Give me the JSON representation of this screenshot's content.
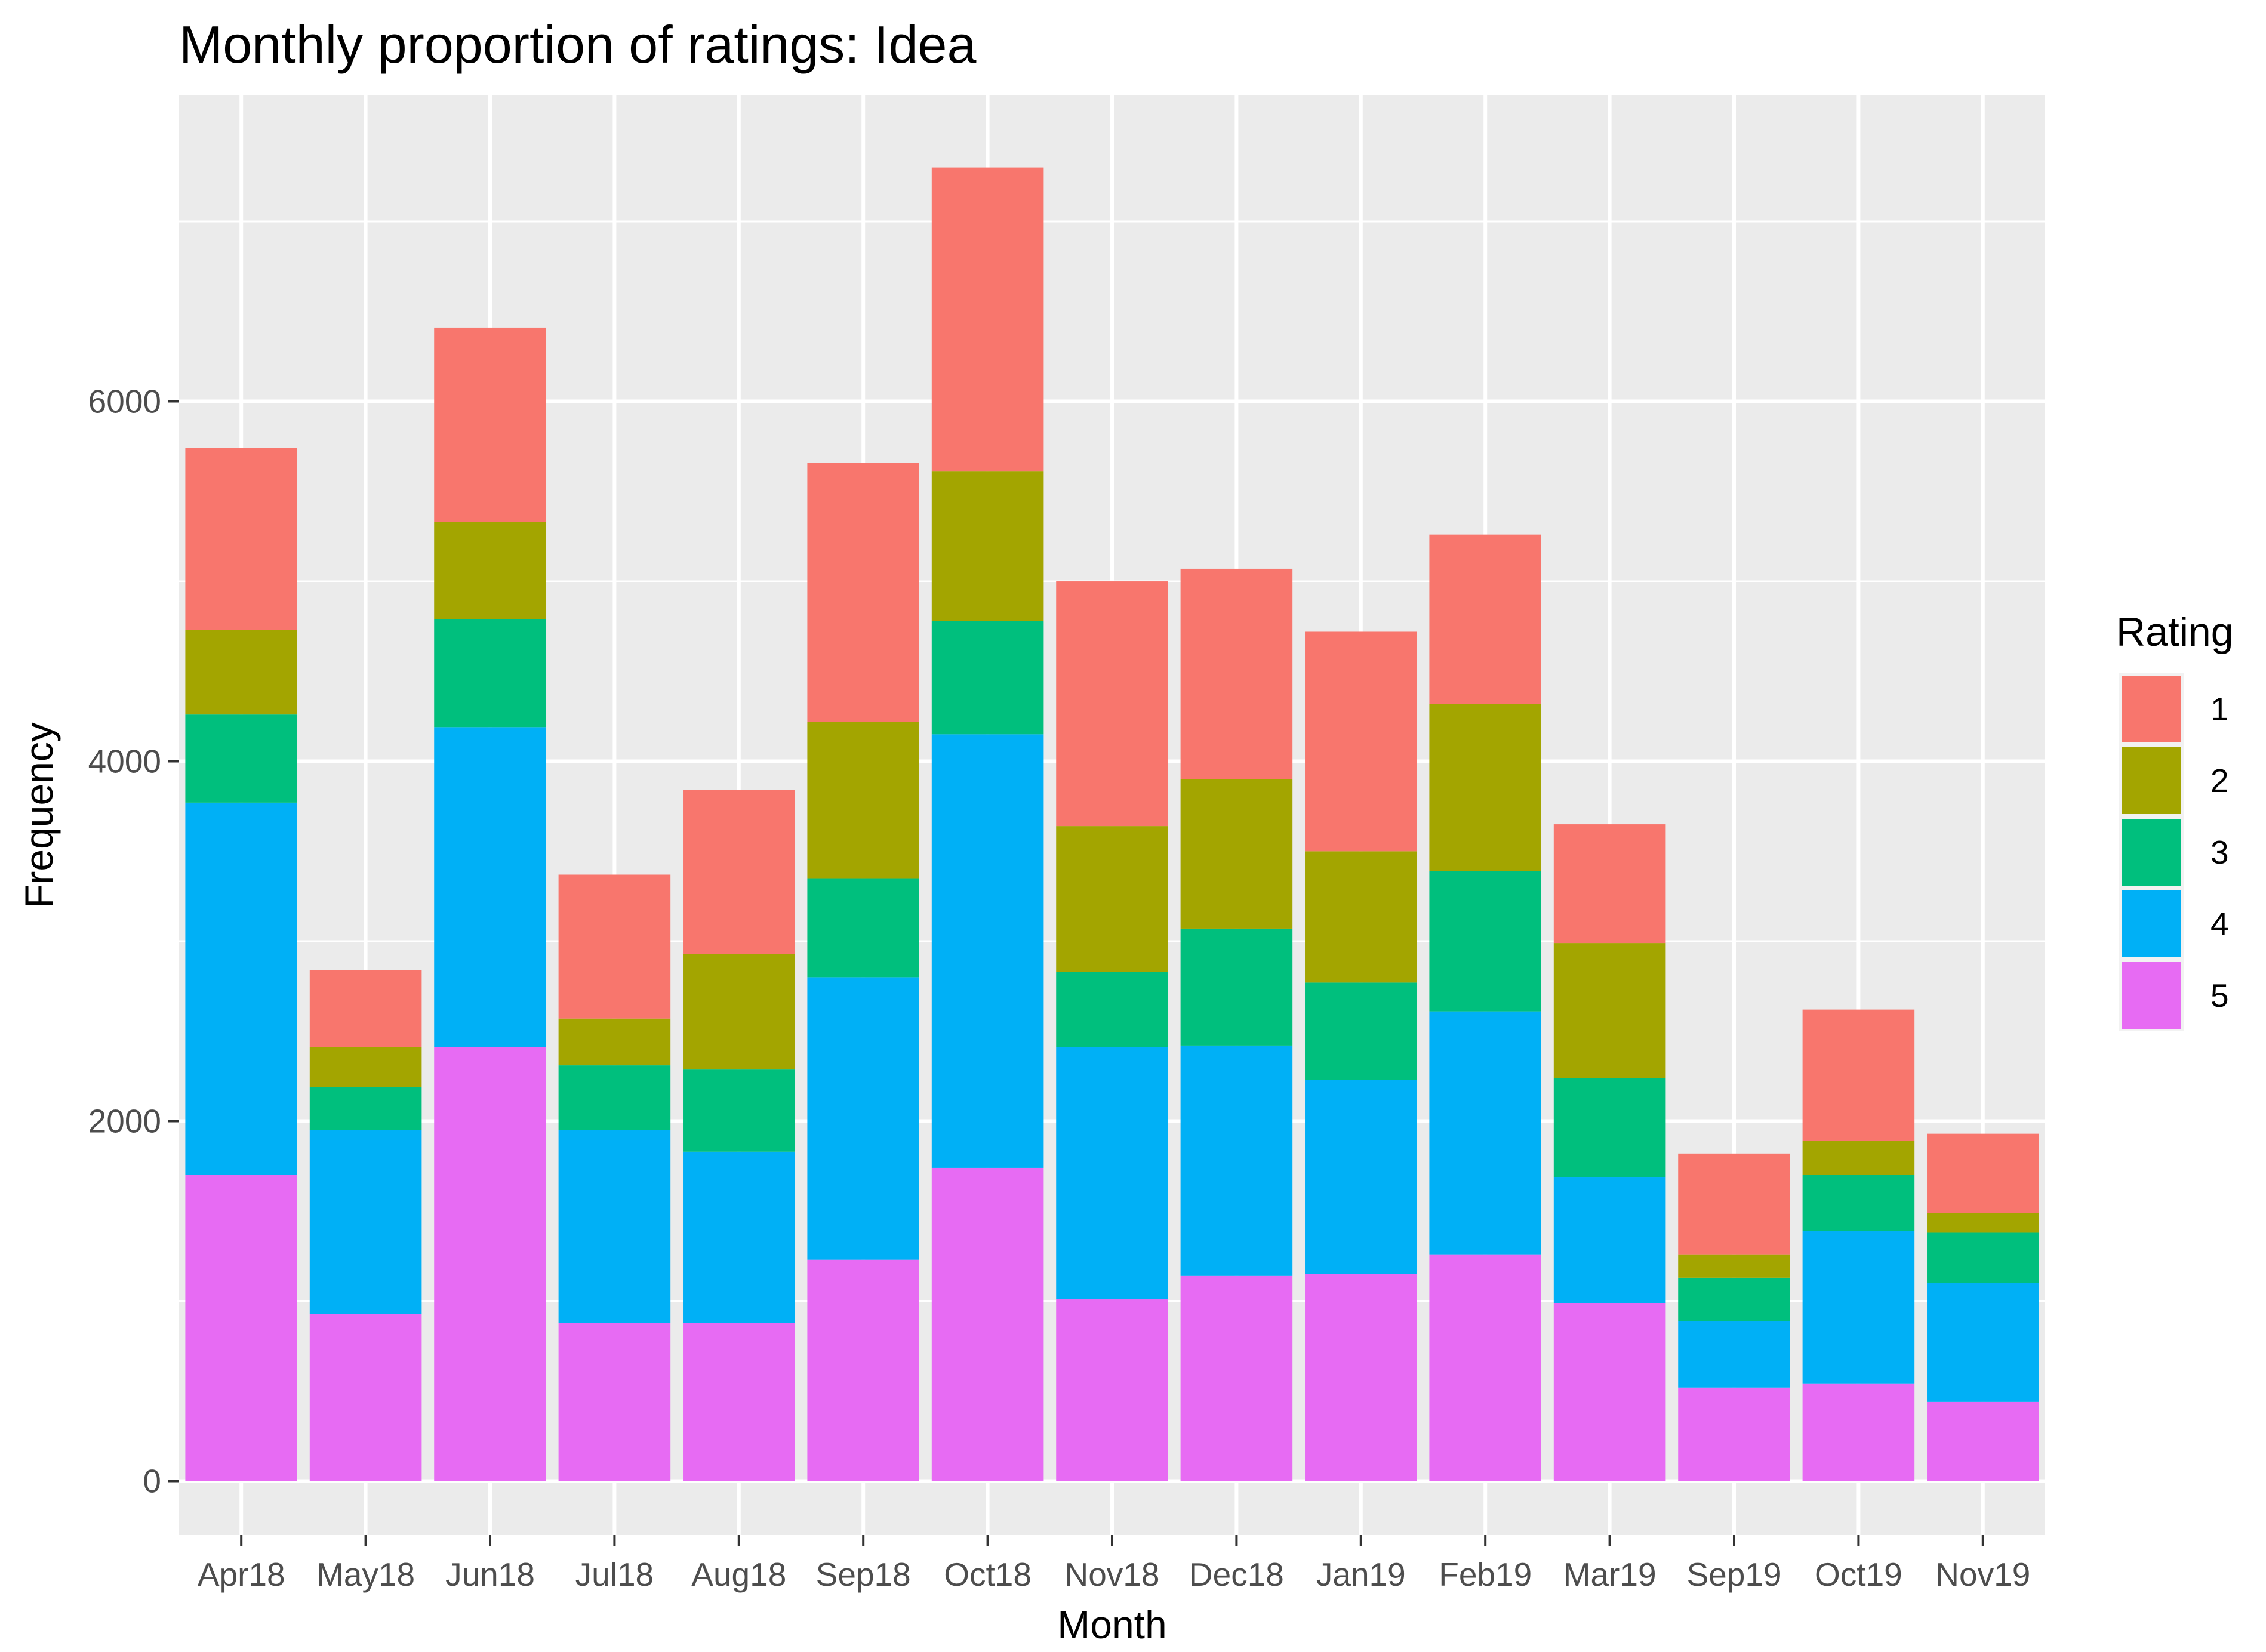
{
  "chart_data": {
    "type": "bar",
    "stacked": true,
    "title": "Monthly proportion of ratings: Idea",
    "xlabel": "Month",
    "ylabel": "Frequency",
    "ylim": [
      -300,
      7700
    ],
    "yticks": [
      0,
      2000,
      4000,
      6000
    ],
    "ytick_labels": [
      "0",
      "2000",
      "4000",
      "6000"
    ],
    "grid": true,
    "legend": {
      "title": "Rating",
      "position": "right"
    },
    "categories": [
      "Apr18",
      "May18",
      "Jun18",
      "Jul18",
      "Aug18",
      "Sep18",
      "Oct18",
      "Nov18",
      "Dec18",
      "Jan19",
      "Feb19",
      "Mar19",
      "Sep19",
      "Oct19",
      "Nov19"
    ],
    "series": [
      {
        "name": "1",
        "color": "#F8766D",
        "values": [
          1010,
          430,
          1080,
          800,
          910,
          1440,
          1690,
          1360,
          1170,
          1220,
          940,
          660,
          560,
          730,
          440
        ]
      },
      {
        "name": "2",
        "color": "#A3A500",
        "values": [
          470,
          220,
          540,
          260,
          640,
          870,
          830,
          810,
          830,
          730,
          930,
          750,
          130,
          190,
          110
        ]
      },
      {
        "name": "3",
        "color": "#00BF7D",
        "values": [
          490,
          240,
          600,
          360,
          460,
          550,
          630,
          420,
          650,
          540,
          780,
          550,
          240,
          310,
          280
        ]
      },
      {
        "name": "4",
        "color": "#00B0F6",
        "values": [
          2070,
          1020,
          1780,
          1070,
          950,
          1570,
          2410,
          1400,
          1280,
          1080,
          1350,
          700,
          370,
          850,
          660
        ]
      },
      {
        "name": "5",
        "color": "#E76BF3",
        "values": [
          1700,
          930,
          2410,
          880,
          880,
          1230,
          1740,
          1010,
          1140,
          1150,
          1260,
          990,
          520,
          540,
          440
        ]
      }
    ]
  }
}
